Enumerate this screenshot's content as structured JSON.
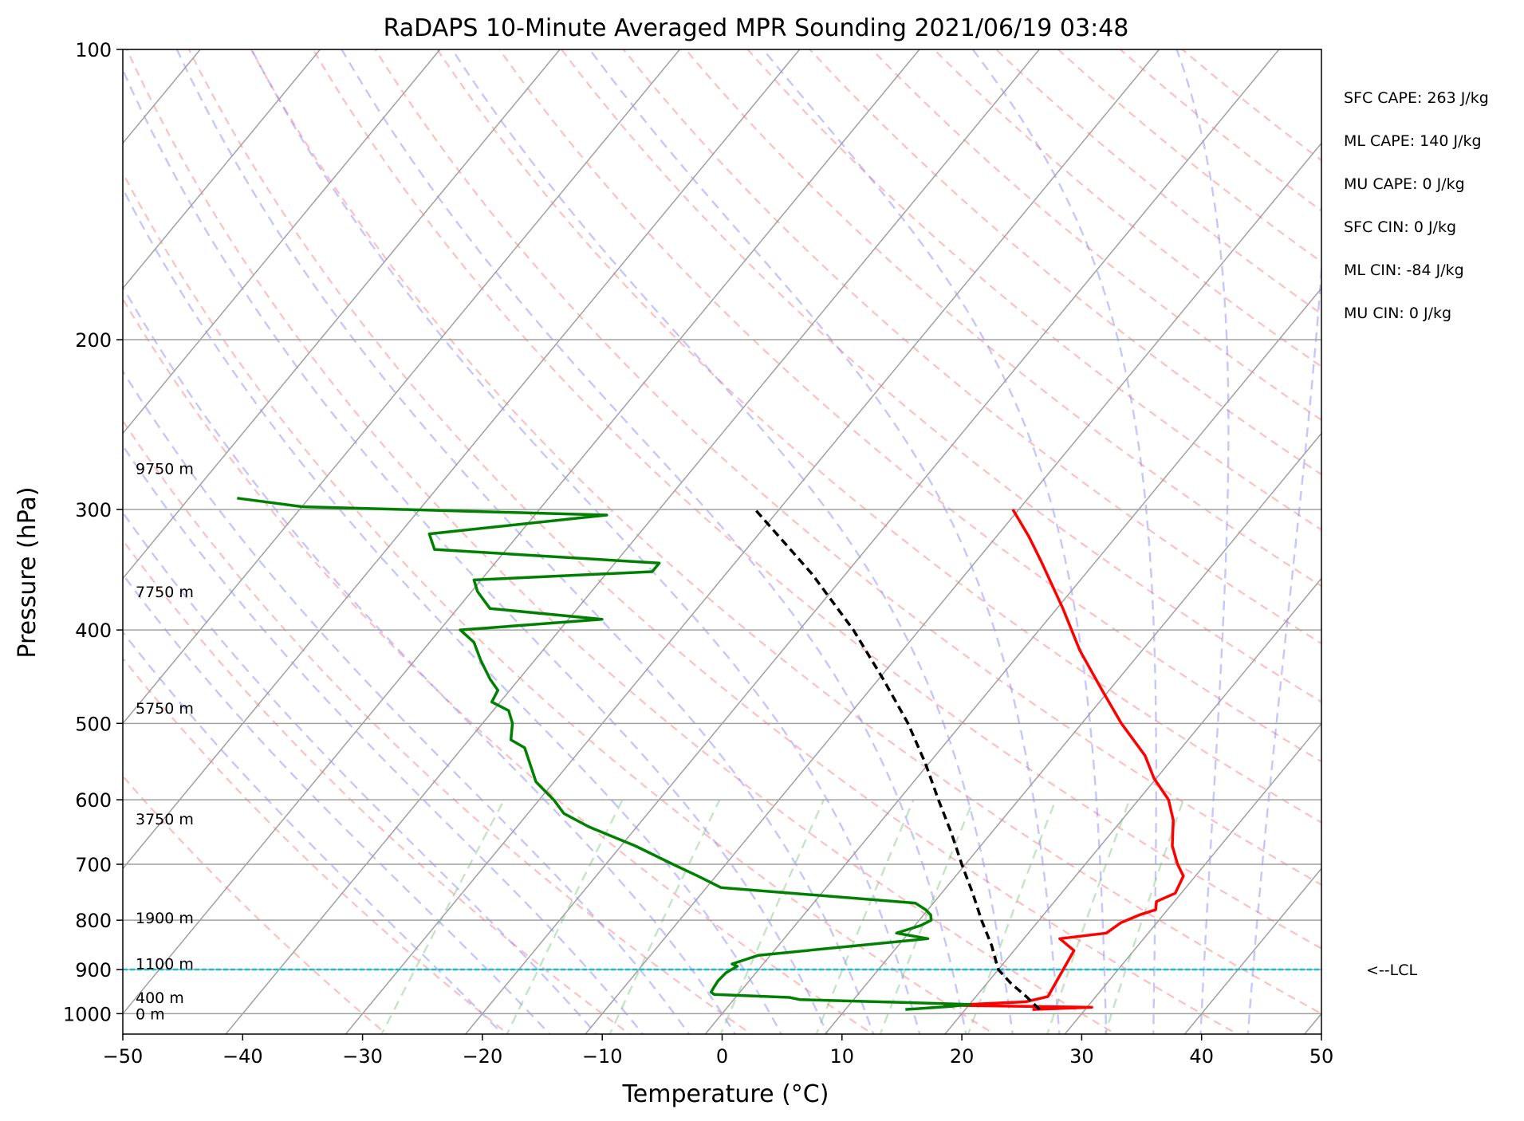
{
  "chart_data": {
    "type": "skew-t sounding",
    "title": "RaDAPS 10-Minute Averaged MPR Sounding 2021/06/19 03:48",
    "xlabel": "Temperature (°C)",
    "ylabel": "Pressure (hPa)",
    "xlim": [
      -50,
      50
    ],
    "ylim_hpa": [
      1050,
      100
    ],
    "y_scale": "log",
    "grid": true,
    "x_ticks": [
      "−50",
      "−40",
      "−30",
      "−20",
      "−10",
      "0",
      "10",
      "20",
      "30",
      "40",
      "50"
    ],
    "x_tick_values": [
      -50,
      -40,
      -30,
      -20,
      -10,
      0,
      10,
      20,
      30,
      40,
      50
    ],
    "y_ticks": [
      "100",
      "200",
      "300",
      "400",
      "500",
      "600",
      "700",
      "800",
      "900",
      "1000"
    ],
    "y_tick_values": [
      100,
      200,
      300,
      400,
      500,
      600,
      700,
      800,
      900,
      1000
    ],
    "height_labels": [
      {
        "text": "9750 m",
        "p": 272
      },
      {
        "text": "7750 m",
        "p": 365
      },
      {
        "text": "5750 m",
        "p": 482
      },
      {
        "text": "3750 m",
        "p": 628
      },
      {
        "text": "1900 m",
        "p": 795
      },
      {
        "text": "1100 m",
        "p": 887
      },
      {
        "text": "400 m",
        "p": 962
      },
      {
        "text": "0 m",
        "p": 1000
      }
    ],
    "stats": [
      "SFC CAPE: 263 J/kg",
      "ML CAPE: 140 J/kg",
      "MU CAPE: 0 J/kg",
      "SFC CIN: 0 J/kg",
      "ML CIN: -84 J/kg",
      "MU CIN: 0 J/kg"
    ],
    "lcl_label": "<--LCL",
    "lcl_p": 900,
    "colors": {
      "temperature": "#ff0000",
      "dewpoint": "#008000",
      "parcel": "#000000",
      "lcl_line": "#17becf",
      "dry_adiabat": "#ff8080",
      "moist_adiabat": "#8080ff",
      "mixing_ratio": "#80c080",
      "isotherm": "#a0a0a0"
    },
    "series": [
      {
        "name": "Temperature",
        "points": [
          {
            "p": 990,
            "t": 25.6
          },
          {
            "p": 985,
            "t": 30.4
          },
          {
            "p": 980,
            "t": 18
          },
          {
            "p": 978,
            "t": 20
          },
          {
            "p": 972,
            "t": 24.5
          },
          {
            "p": 960,
            "t": 26
          },
          {
            "p": 860,
            "t": 25
          },
          {
            "p": 836,
            "t": 23
          },
          {
            "p": 825,
            "t": 26.5
          },
          {
            "p": 805,
            "t": 27
          },
          {
            "p": 790,
            "t": 28
          },
          {
            "p": 780,
            "t": 29
          },
          {
            "p": 765,
            "t": 28.5
          },
          {
            "p": 750,
            "t": 29.5
          },
          {
            "p": 720,
            "t": 29
          },
          {
            "p": 700,
            "t": 27.7
          },
          {
            "p": 670,
            "t": 26
          },
          {
            "p": 630,
            "t": 24.3
          },
          {
            "p": 600,
            "t": 22.5
          },
          {
            "p": 570,
            "t": 19.8
          },
          {
            "p": 540,
            "t": 17.5
          },
          {
            "p": 500,
            "t": 13.3
          },
          {
            "p": 460,
            "t": 9.2
          },
          {
            "p": 420,
            "t": 4.8
          },
          {
            "p": 380,
            "t": 0.5
          },
          {
            "p": 340,
            "t": -4.5
          },
          {
            "p": 320,
            "t": -7.3
          },
          {
            "p": 300,
            "t": -10.5
          }
        ]
      },
      {
        "name": "Dewpoint",
        "points": [
          {
            "p": 990,
            "t": 15
          },
          {
            "p": 983,
            "t": 18.5
          },
          {
            "p": 978,
            "t": 20
          },
          {
            "p": 967,
            "t": 5.5
          },
          {
            "p": 962,
            "t": 4.5
          },
          {
            "p": 955,
            "t": -2
          },
          {
            "p": 950,
            "t": -2.4
          },
          {
            "p": 940,
            "t": -2.5
          },
          {
            "p": 925,
            "t": -2.6
          },
          {
            "p": 907,
            "t": -2.5
          },
          {
            "p": 893,
            "t": -2
          },
          {
            "p": 888,
            "t": -2.6
          },
          {
            "p": 870,
            "t": -1
          },
          {
            "p": 836,
            "t": 12
          },
          {
            "p": 825,
            "t": 9
          },
          {
            "p": 810,
            "t": 10.5
          },
          {
            "p": 800,
            "t": 11
          },
          {
            "p": 790,
            "t": 10.6
          },
          {
            "p": 780,
            "t": 9.8
          },
          {
            "p": 768,
            "t": 8.5
          },
          {
            "p": 740,
            "t": -8.8
          },
          {
            "p": 720,
            "t": -11.5
          },
          {
            "p": 700,
            "t": -14.4
          },
          {
            "p": 670,
            "t": -18.8
          },
          {
            "p": 640,
            "t": -24
          },
          {
            "p": 620,
            "t": -27
          },
          {
            "p": 600,
            "t": -28.8
          },
          {
            "p": 575,
            "t": -31.5
          },
          {
            "p": 550,
            "t": -33.3
          },
          {
            "p": 530,
            "t": -34.8
          },
          {
            "p": 520,
            "t": -36.5
          },
          {
            "p": 500,
            "t": -37.5
          },
          {
            "p": 485,
            "t": -38.7
          },
          {
            "p": 475,
            "t": -40.7
          },
          {
            "p": 462,
            "t": -41
          },
          {
            "p": 450,
            "t": -42.4
          },
          {
            "p": 430,
            "t": -44.5
          },
          {
            "p": 412,
            "t": -46.3
          },
          {
            "p": 400,
            "t": -48.3
          },
          {
            "p": 390,
            "t": -37.2
          },
          {
            "p": 380,
            "t": -47.3
          },
          {
            "p": 365,
            "t": -49.5
          },
          {
            "p": 355,
            "t": -50.6
          },
          {
            "p": 348,
            "t": -36.3
          },
          {
            "p": 341,
            "t": -36.3
          },
          {
            "p": 330,
            "t": -56
          },
          {
            "p": 318,
            "t": -57.5
          },
          {
            "p": 304,
            "t": -44
          },
          {
            "p": 298,
            "t": -70
          },
          {
            "p": 292,
            "t": -76
          }
        ]
      },
      {
        "name": "Parcel",
        "points": [
          {
            "p": 990,
            "t": 26.2
          },
          {
            "p": 960,
            "t": 24.2
          },
          {
            "p": 930,
            "t": 22
          },
          {
            "p": 900,
            "t": 20
          },
          {
            "p": 850,
            "t": 17.8
          },
          {
            "p": 800,
            "t": 15.2
          },
          {
            "p": 750,
            "t": 12.6
          },
          {
            "p": 700,
            "t": 9.7
          },
          {
            "p": 650,
            "t": 6.7
          },
          {
            "p": 600,
            "t": 3.3
          },
          {
            "p": 550,
            "t": -0.3
          },
          {
            "p": 500,
            "t": -4.5
          },
          {
            "p": 450,
            "t": -9.6
          },
          {
            "p": 400,
            "t": -15.5
          },
          {
            "p": 350,
            "t": -22.8
          },
          {
            "p": 300,
            "t": -32
          }
        ]
      }
    ]
  }
}
